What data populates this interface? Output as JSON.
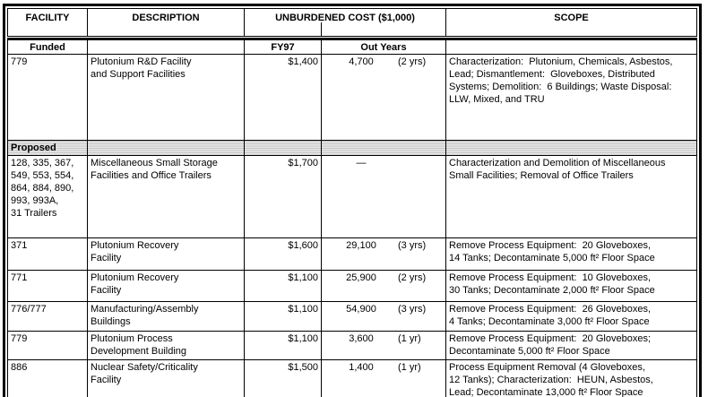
{
  "colors": {
    "background": "#ffffff",
    "border": "#000000",
    "text": "#000000",
    "proposed_band_shading": "#d4d4d4"
  },
  "table": {
    "header": {
      "facility": "FACILITY",
      "description": "DESCRIPTION",
      "unburdened_cost": "UNBURDENED COST ($1,000)",
      "scope": "SCOPE"
    },
    "subheader": {
      "funded_label": "Funded",
      "fy97": "FY97",
      "out_years": "Out Years"
    },
    "proposed_label": "Proposed",
    "funded_rows": [
      {
        "facility": "779",
        "description": "Plutonium R&D Facility\nand Support Facilities",
        "fy97": "$1,400",
        "out_years_value": "4,700",
        "out_years_duration": "(2 yrs)",
        "scope": "Characterization:  Plutonium, Chemicals, Asbestos,\nLead; Dismantlement:  Gloveboxes, Distributed\nSystems; Demolition:  6 Buildings; Waste Disposal:\nLLW, Mixed, and TRU"
      }
    ],
    "proposed_rows": [
      {
        "facility": "128, 335, 367,\n549, 553, 554,\n864, 884, 890,\n993, 993A,\n31 Trailers",
        "description": "Miscellaneous Small Storage\nFacilities and Office Trailers",
        "fy97": "$1,700",
        "out_years_value": "—",
        "out_years_duration": "",
        "scope": "Characterization and Demolition of Miscellaneous\nSmall Facilities; Removal of Office Trailers"
      },
      {
        "facility": "371",
        "description": "Plutonium Recovery\nFacility",
        "fy97": "$1,600",
        "out_years_value": "29,100",
        "out_years_duration": "(3 yrs)",
        "scope": "Remove Process Equipment:  20 Gloveboxes,\n14 Tanks; Decontaminate 5,000 ft² Floor Space"
      },
      {
        "facility": "771",
        "description": "Plutonium Recovery\nFacility",
        "fy97": "$1,100",
        "out_years_value": "25,900",
        "out_years_duration": "(2 yrs)",
        "scope": "Remove Process Equipment:  10 Gloveboxes,\n30 Tanks; Decontaminate 2,000 ft² Floor Space"
      },
      {
        "facility": "776/777",
        "description": "Manufacturing/Assembly\nBuildings",
        "fy97": "$1,100",
        "out_years_value": "54,900",
        "out_years_duration": "(3 yrs)",
        "scope": "Remove Process Equipment:  26 Gloveboxes,\n4 Tanks; Decontaminate 3,000 ft² Floor Space"
      },
      {
        "facility": "779",
        "description": "Plutonium Process\nDevelopment Building",
        "fy97": "$1,100",
        "out_years_value": "3,600",
        "out_years_duration": "(1 yr)",
        "scope": "Remove Process Equipment:  20 Gloveboxes;\nDecontaminate 5,000 ft² Floor Space"
      },
      {
        "facility": "886",
        "description": "Nuclear Safety/Criticality\nFacility",
        "fy97": "$1,500",
        "out_years_value": "1,400",
        "out_years_duration": "(1 yr)",
        "scope": "Process Equipment Removal (4 Gloveboxes,\n12 Tanks); Characterization:  HEUN, Asbestos,\nLead; Decontaminate 13,000 ft² Floor Space"
      }
    ]
  }
}
